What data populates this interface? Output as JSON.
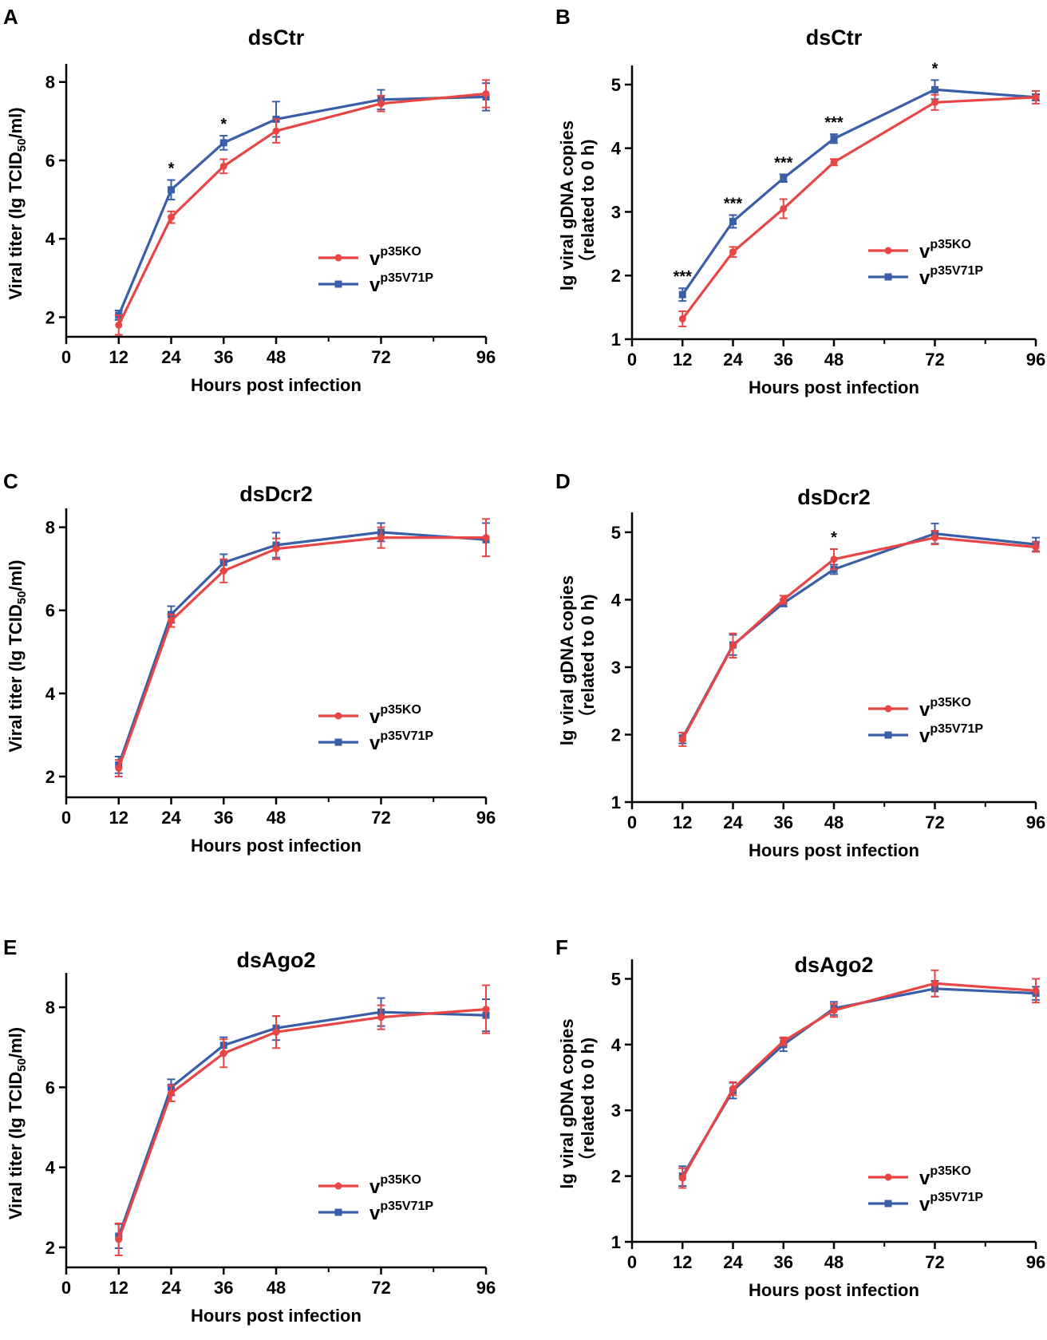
{
  "colors": {
    "vp35KO": "#e84545",
    "vp35V71P": "#3a5ea8",
    "axis": "#000000"
  },
  "legend": {
    "series": [
      {
        "key": "vp35KO",
        "base": "v",
        "sup": "p35KO"
      },
      {
        "key": "vp35V71P",
        "base": "v",
        "sup": "p35V71P"
      }
    ]
  },
  "chart_data": [
    {
      "panel": "A",
      "type": "line",
      "title": "dsCtr",
      "xlabel": "Hours post infection",
      "ylabel": {
        "pre": "Viral titer (lg TCID",
        "sub": "50",
        "post": "/ml)"
      },
      "xlim": [
        0,
        96
      ],
      "ylim": [
        1.5,
        8.3
      ],
      "xticks": [
        "0",
        "12",
        "24",
        "36",
        "48",
        "72",
        "96"
      ],
      "yticks": [
        "2",
        "4",
        "6",
        "8"
      ],
      "x": [
        12,
        24,
        36,
        48,
        72,
        96
      ],
      "series": [
        {
          "key": "vp35KO",
          "values": [
            1.8,
            4.55,
            5.85,
            6.75,
            7.45,
            7.7
          ],
          "err": [
            0.25,
            0.15,
            0.18,
            0.3,
            0.2,
            0.35
          ]
        },
        {
          "key": "vp35V71P",
          "values": [
            2.05,
            5.25,
            6.45,
            7.05,
            7.55,
            7.62
          ],
          "err": [
            0.12,
            0.25,
            0.18,
            0.45,
            0.25,
            0.35
          ]
        }
      ],
      "annotations": [
        {
          "x": 24,
          "text": "*"
        },
        {
          "x": 36,
          "text": "*"
        }
      ]
    },
    {
      "panel": "B",
      "type": "line",
      "title": "dsCtr",
      "xlabel": "Hours post infection",
      "ylabel": {
        "line1": "lg viral gDNA copies",
        "line2": "（related to 0 h)"
      },
      "xlim": [
        0,
        96
      ],
      "ylim": [
        1,
        5.2
      ],
      "xticks": [
        "0",
        "12",
        "24",
        "36",
        "48",
        "72",
        "96"
      ],
      "yticks": [
        "1",
        "2",
        "3",
        "4",
        "5"
      ],
      "x": [
        12,
        24,
        36,
        48,
        72,
        96
      ],
      "series": [
        {
          "key": "vp35KO",
          "values": [
            1.32,
            2.37,
            3.05,
            3.78,
            4.72,
            4.8
          ],
          "err": [
            0.12,
            0.08,
            0.15,
            0.05,
            0.12,
            0.1
          ]
        },
        {
          "key": "vp35V71P",
          "values": [
            1.7,
            2.85,
            3.53,
            4.15,
            4.92,
            4.8
          ],
          "err": [
            0.1,
            0.1,
            0.06,
            0.07,
            0.15,
            0.05
          ]
        }
      ],
      "annotations": [
        {
          "x": 12,
          "text": "***"
        },
        {
          "x": 24,
          "text": "***"
        },
        {
          "x": 36,
          "text": "***"
        },
        {
          "x": 48,
          "text": "***"
        },
        {
          "x": 72,
          "text": "*"
        }
      ]
    },
    {
      "panel": "C",
      "type": "line",
      "title": "dsDcr2",
      "xlabel": "Hours post infection",
      "ylabel": {
        "pre": "Viral titer (lg TCID",
        "sub": "50",
        "post": "/ml)"
      },
      "xlim": [
        0,
        96
      ],
      "ylim": [
        1.5,
        8.3
      ],
      "xticks": [
        "0",
        "12",
        "24",
        "36",
        "48",
        "72",
        "96"
      ],
      "yticks": [
        "2",
        "4",
        "6",
        "8"
      ],
      "x": [
        12,
        24,
        36,
        48,
        72,
        96
      ],
      "series": [
        {
          "key": "vp35KO",
          "values": [
            2.2,
            5.75,
            6.95,
            7.48,
            7.75,
            7.75
          ],
          "err": [
            0.2,
            0.15,
            0.28,
            0.25,
            0.25,
            0.45
          ]
        },
        {
          "key": "vp35V71P",
          "values": [
            2.28,
            5.9,
            7.15,
            7.57,
            7.88,
            7.7
          ],
          "err": [
            0.2,
            0.2,
            0.2,
            0.3,
            0.22,
            0.4
          ]
        }
      ],
      "annotations": []
    },
    {
      "panel": "D",
      "type": "line",
      "title": "dsDcr2",
      "xlabel": "Hours post infection",
      "ylabel": {
        "line1": "lg viral gDNA copies",
        "line2": "（related to 0 h)"
      },
      "xlim": [
        0,
        96
      ],
      "ylim": [
        1,
        5.2
      ],
      "xticks": [
        "0",
        "12",
        "24",
        "36",
        "48",
        "72",
        "96"
      ],
      "yticks": [
        "1",
        "2",
        "3",
        "4",
        "5"
      ],
      "x": [
        12,
        24,
        36,
        48,
        72,
        96
      ],
      "series": [
        {
          "key": "vp35KO",
          "values": [
            1.93,
            3.32,
            4.0,
            4.6,
            4.92,
            4.78
          ],
          "err": [
            0.1,
            0.18,
            0.06,
            0.15,
            0.1,
            0.07
          ]
        },
        {
          "key": "vp35V71P",
          "values": [
            1.95,
            3.33,
            3.95,
            4.45,
            4.98,
            4.82
          ],
          "err": [
            0.08,
            0.15,
            0.05,
            0.07,
            0.15,
            0.1
          ]
        }
      ],
      "annotations": [
        {
          "x": 48,
          "text": "*"
        }
      ]
    },
    {
      "panel": "E",
      "type": "line",
      "title": "dsAgo2",
      "xlabel": "Hours post infection",
      "ylabel": {
        "pre": "Viral titer (lg TCID",
        "sub": "50",
        "post": "/ml)"
      },
      "xlim": [
        0,
        96
      ],
      "ylim": [
        1.5,
        8.7
      ],
      "xticks": [
        "0",
        "12",
        "24",
        "36",
        "48",
        "72",
        "96"
      ],
      "yticks": [
        "2",
        "4",
        "6",
        "8"
      ],
      "x": [
        12,
        24,
        36,
        48,
        72,
        96
      ],
      "series": [
        {
          "key": "vp35KO",
          "values": [
            2.2,
            5.85,
            6.85,
            7.38,
            7.75,
            7.95
          ],
          "err": [
            0.4,
            0.2,
            0.35,
            0.4,
            0.3,
            0.6
          ]
        },
        {
          "key": "vp35V71P",
          "values": [
            2.28,
            6.0,
            7.05,
            7.48,
            7.88,
            7.8
          ],
          "err": [
            0.3,
            0.2,
            0.2,
            0.3,
            0.35,
            0.4
          ]
        }
      ],
      "annotations": []
    },
    {
      "panel": "F",
      "type": "line",
      "title": "dsAgo2",
      "xlabel": "Hours post infection",
      "ylabel": {
        "line1": "lg viral gDNA copies",
        "line2": "（related to 0 h)"
      },
      "xlim": [
        0,
        96
      ],
      "ylim": [
        1,
        5.2
      ],
      "xticks": [
        "0",
        "12",
        "24",
        "36",
        "48",
        "72",
        "96"
      ],
      "yticks": [
        "1",
        "2",
        "3",
        "4",
        "5"
      ],
      "x": [
        12,
        24,
        36,
        48,
        72,
        96
      ],
      "series": [
        {
          "key": "vp35KO",
          "values": [
            1.97,
            3.33,
            4.05,
            4.52,
            4.93,
            4.82
          ],
          "err": [
            0.15,
            0.1,
            0.06,
            0.1,
            0.2,
            0.18
          ]
        },
        {
          "key": "vp35V71P",
          "values": [
            2.0,
            3.3,
            4.0,
            4.55,
            4.85,
            4.78
          ],
          "err": [
            0.15,
            0.12,
            0.1,
            0.1,
            0.12,
            0.1
          ]
        }
      ],
      "annotations": []
    }
  ]
}
